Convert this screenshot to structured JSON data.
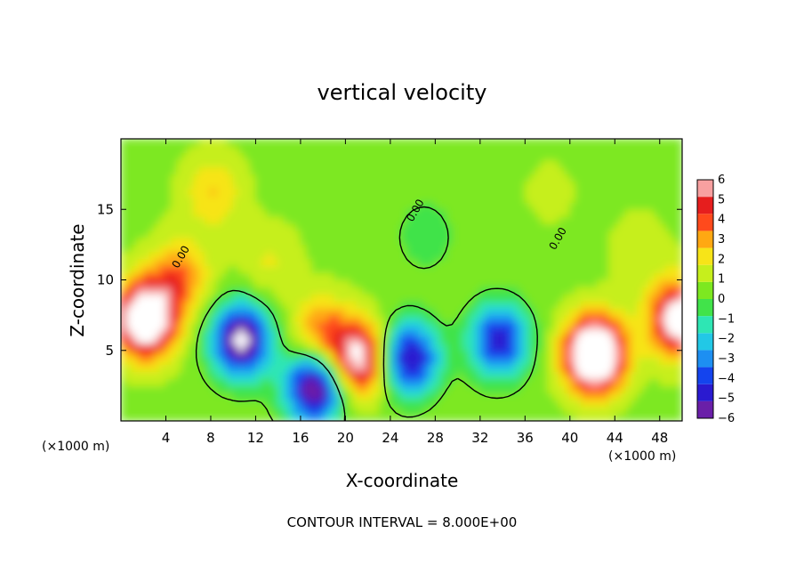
{
  "chart_data": {
    "type": "heatmap",
    "title": "vertical velocity",
    "xlabel": "X-coordinate",
    "ylabel": "Z-coordinate",
    "x_unit": "(×1000 m)",
    "z_unit": "(×1000 m)",
    "xlim": [
      0,
      50
    ],
    "ylim": [
      0,
      20
    ],
    "x_ticks": [
      4,
      8,
      12,
      16,
      20,
      24,
      28,
      32,
      36,
      40,
      44,
      48
    ],
    "y_ticks": [
      5,
      10,
      15
    ],
    "colorbar": {
      "min": -6,
      "max": 6,
      "tick_values": [
        6,
        5,
        4,
        3,
        2,
        1,
        0,
        -1,
        -2,
        -3,
        -4,
        -5,
        -6
      ],
      "tick_labels": [
        "6",
        "5",
        "4",
        "3",
        "2",
        "1",
        "0",
        "−1",
        "−2",
        "−3",
        "−4",
        "−5",
        "−6"
      ],
      "colors": [
        "#6a1fa8",
        "#2a1ad0",
        "#1444ee",
        "#1d8ff2",
        "#22c8e6",
        "#2ee6b4",
        "#41e34a",
        "#7de820",
        "#c6ef1c",
        "#f7e418",
        "#ffa812",
        "#ff4a1c",
        "#e61e1e",
        "#f8a0a0"
      ],
      "out_of_range_color": "#ffffff"
    },
    "contour_label": "0.00",
    "contour_interval": "CONTOUR INTERVAL = 8.000E+00",
    "features": [
      {
        "x": 2.0,
        "z": 7.0,
        "w": 8
      },
      {
        "x": 5.0,
        "z": 10.0,
        "w": 3
      },
      {
        "x": 10.5,
        "z": 5.5,
        "w": -7
      },
      {
        "x": 13.0,
        "z": 11.0,
        "w": 1.2
      },
      {
        "x": 17.0,
        "z": 2.2,
        "w": -7
      },
      {
        "x": 17.6,
        "z": 6.0,
        "w": 3
      },
      {
        "x": 21.0,
        "z": 4.2,
        "w": 6
      },
      {
        "x": 25.5,
        "z": 4.2,
        "w": -6
      },
      {
        "x": 27.0,
        "z": 13.0,
        "w": -1.2
      },
      {
        "x": 33.5,
        "z": 5.5,
        "w": -5.5
      },
      {
        "x": 42.0,
        "z": 4.5,
        "w": 9
      },
      {
        "x": 46.0,
        "z": 12.0,
        "w": 0.8
      },
      {
        "x": 49.5,
        "z": 7.0,
        "w": 6.5
      },
      {
        "x": 8.0,
        "z": 16.0,
        "w": 2
      },
      {
        "x": 38.0,
        "z": 16.0,
        "w": 0.5
      }
    ]
  }
}
